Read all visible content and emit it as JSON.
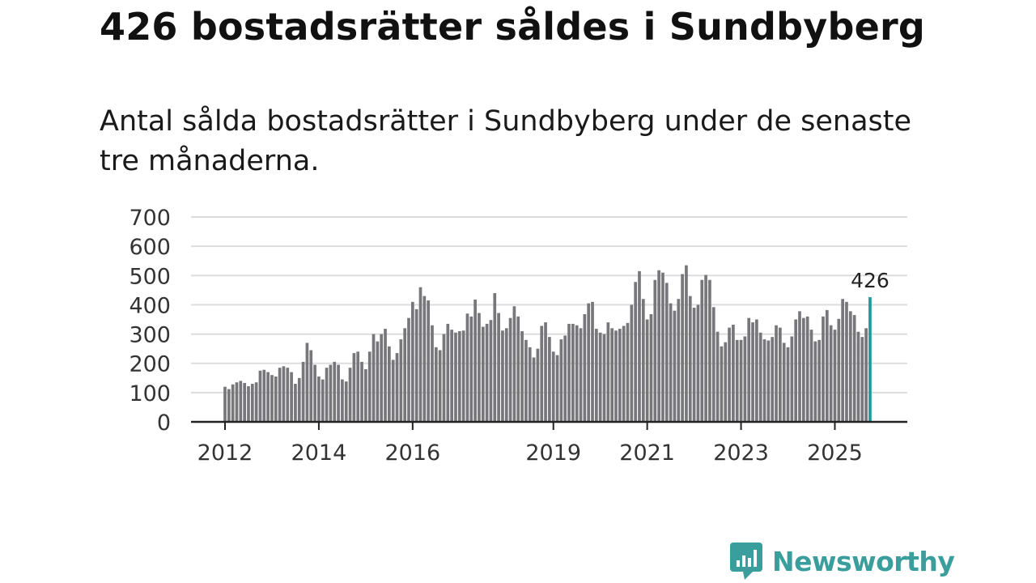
{
  "title": "426 bostadsrätter såldes i Sundbyberg",
  "subtitle": "Antal sålda bostadsrätter i Sundbyberg under de senaste tre månaderna.",
  "brand": {
    "name": "Newsworthy"
  },
  "colors": {
    "bar": "#77767b",
    "highlight": "#1a9c9a",
    "grid": "#dddddd",
    "axis": "#222222",
    "brand": "#3a9e9c"
  },
  "chart_data": {
    "type": "bar",
    "title": "426 bostadsrätter såldes i Sundbyberg",
    "xlabel": "",
    "ylabel": "",
    "ylim": [
      0,
      700
    ],
    "yticks": [
      "0",
      "100",
      "200",
      "300",
      "400",
      "500",
      "600",
      "700"
    ],
    "xtick_labels": [
      {
        "label": "2012",
        "index": 0
      },
      {
        "label": "2014",
        "index": 24
      },
      {
        "label": "2016",
        "index": 48
      },
      {
        "label": "2019",
        "index": 84
      },
      {
        "label": "2021",
        "index": 108
      },
      {
        "label": "2023",
        "index": 132
      },
      {
        "label": "2025",
        "index": 156
      }
    ],
    "start": "2012-01",
    "highlight_index": 165,
    "highlight_label": "426",
    "values": [
      120,
      112,
      128,
      135,
      140,
      133,
      122,
      130,
      135,
      175,
      178,
      170,
      160,
      155,
      185,
      190,
      185,
      170,
      130,
      150,
      205,
      270,
      245,
      195,
      155,
      145,
      185,
      195,
      205,
      195,
      145,
      138,
      185,
      235,
      240,
      205,
      180,
      240,
      300,
      275,
      300,
      318,
      258,
      212,
      235,
      282,
      320,
      355,
      410,
      385,
      460,
      430,
      415,
      330,
      255,
      245,
      300,
      335,
      315,
      305,
      310,
      312,
      370,
      360,
      418,
      372,
      325,
      335,
      348,
      440,
      372,
      312,
      320,
      355,
      395,
      360,
      310,
      280,
      255,
      220,
      250,
      328,
      340,
      290,
      240,
      228,
      282,
      295,
      335,
      335,
      330,
      320,
      368,
      405,
      410,
      318,
      305,
      300,
      340,
      320,
      312,
      318,
      328,
      338,
      400,
      478,
      515,
      420,
      350,
      368,
      485,
      518,
      510,
      475,
      405,
      380,
      420,
      505,
      535,
      430,
      390,
      400,
      485,
      502,
      485,
      392,
      308,
      258,
      272,
      322,
      332,
      280,
      280,
      292,
      355,
      340,
      350,
      305,
      282,
      278,
      290,
      330,
      322,
      270,
      255,
      292,
      350,
      378,
      355,
      360,
      315,
      275,
      280,
      360,
      382,
      330,
      315,
      352,
      420,
      410,
      378,
      365,
      308,
      290,
      320,
      426
    ]
  }
}
